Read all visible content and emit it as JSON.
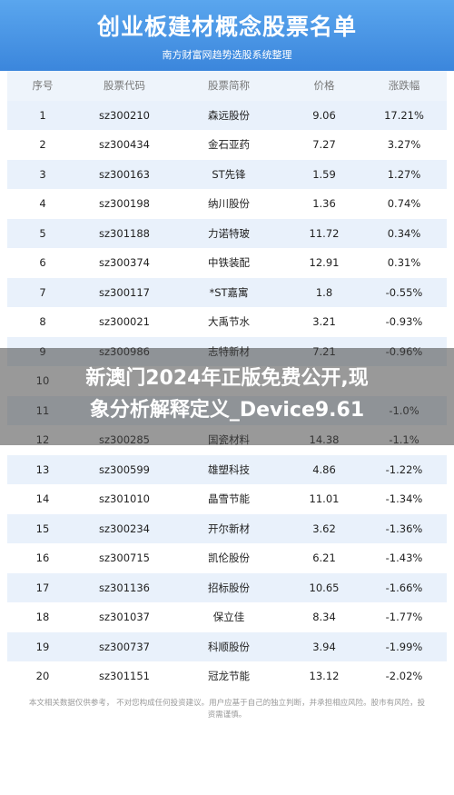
{
  "header": {
    "title": "创业板建材概念股票名单",
    "subtitle": "南方财富网趋势选股系统整理"
  },
  "table": {
    "columns": [
      "序号",
      "股票代码",
      "股票简称",
      "价格",
      "涨跌幅"
    ],
    "rows": [
      [
        "1",
        "sz300210",
        "森远股份",
        "9.06",
        "17.21%"
      ],
      [
        "2",
        "sz300434",
        "金石亚药",
        "7.27",
        "3.27%"
      ],
      [
        "3",
        "sz300163",
        "ST先锋",
        "1.59",
        "1.27%"
      ],
      [
        "4",
        "sz300198",
        "纳川股份",
        "1.36",
        "0.74%"
      ],
      [
        "5",
        "sz301188",
        "力诺特玻",
        "11.72",
        "0.34%"
      ],
      [
        "6",
        "sz300374",
        "中铁装配",
        "12.91",
        "0.31%"
      ],
      [
        "7",
        "sz300117",
        "*ST嘉寓",
        "1.8",
        "-0.55%"
      ],
      [
        "8",
        "sz300021",
        "大禹节水",
        "3.21",
        "-0.93%"
      ],
      [
        "9",
        "sz300986",
        "志特新材",
        "7.21",
        "-0.96%"
      ],
      [
        "10",
        "",
        "",
        "",
        ""
      ],
      [
        "11",
        "",
        "",
        "",
        "-1.0%"
      ],
      [
        "12",
        "sz300285",
        "国瓷材料",
        "14.38",
        "-1.1%"
      ],
      [
        "13",
        "sz300599",
        "雄塑科技",
        "4.86",
        "-1.22%"
      ],
      [
        "14",
        "sz301010",
        "晶雪节能",
        "11.01",
        "-1.34%"
      ],
      [
        "15",
        "sz300234",
        "开尔新材",
        "3.62",
        "-1.36%"
      ],
      [
        "16",
        "sz300715",
        "凯伦股份",
        "6.21",
        "-1.43%"
      ],
      [
        "17",
        "sz301136",
        "招标股份",
        "10.65",
        "-1.66%"
      ],
      [
        "18",
        "sz301037",
        "保立佳",
        "8.34",
        "-1.77%"
      ],
      [
        "19",
        "sz300737",
        "科顺股份",
        "3.94",
        "-1.99%"
      ],
      [
        "20",
        "sz301151",
        "冠龙节能",
        "13.12",
        "-2.02%"
      ]
    ]
  },
  "footer": {
    "disclaimer": "本文相关数据仅供参考， 不对您构成任何投资建议。用户应基于自己的独立判断，并承担相应风险。股市有风险，投资需谨慎。"
  },
  "overlay": {
    "line1": "新澳门2024年正版免费公开,现",
    "line2": "象分析解释定义_Device9.61"
  }
}
